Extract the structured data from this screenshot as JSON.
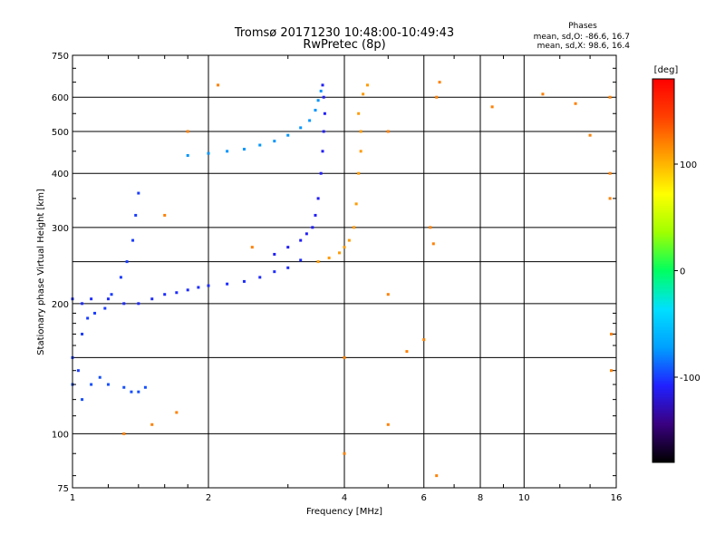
{
  "chart_data": {
    "type": "scatter",
    "title": "Tromsø 20171230 10:48:00-10:49:43",
    "subtitle": "RwPretec (8p)",
    "xlabel": "Frequency [MHz]",
    "ylabel": "Stationary phase Virtual Height [km]",
    "xscale": "log",
    "yscale": "log",
    "xlim": [
      1,
      16
    ],
    "ylim": [
      75,
      750
    ],
    "xticks": [
      "1",
      "2",
      "4",
      "6",
      "8",
      "10",
      "16"
    ],
    "xgrid_values": [
      1,
      2,
      4,
      6,
      8,
      10,
      16
    ],
    "yticks": [
      "750",
      "600",
      "500",
      "400",
      "300",
      "200",
      "100",
      "75"
    ],
    "ytick_values": [
      750,
      600,
      500,
      400,
      300,
      200,
      100,
      75
    ],
    "ygrid_extra_values": [
      250,
      150
    ],
    "grid": true,
    "stats": {
      "heading": "Phases",
      "line_o": "mean, sd,O: -86.6, 16.7",
      "line_x": "mean, sd,X:  98.6, 16.4"
    },
    "colorbar": {
      "label": "[deg]",
      "range": [
        -180,
        180
      ],
      "ticks": [
        "100",
        "0",
        "-100"
      ],
      "tick_values": [
        100,
        0,
        -100
      ],
      "colors": [
        "#000000",
        "#3a0080",
        "#2020ff",
        "#00a0ff",
        "#00e0ff",
        "#00ff60",
        "#a0ff00",
        "#ffff00",
        "#ffa000",
        "#ff4000",
        "#ff0000"
      ]
    },
    "series": [
      {
        "group": "o-low-upper",
        "phase": -105,
        "points": [
          [
            1.0,
            205
          ],
          [
            1.05,
            200
          ],
          [
            1.1,
            205
          ],
          [
            1.2,
            205
          ],
          [
            1.3,
            200
          ],
          [
            1.4,
            200
          ],
          [
            1.5,
            205
          ],
          [
            1.6,
            210
          ],
          [
            1.7,
            212
          ],
          [
            1.8,
            215
          ],
          [
            1.9,
            218
          ],
          [
            2.0,
            220
          ],
          [
            2.2,
            222
          ],
          [
            2.4,
            225
          ],
          [
            2.6,
            230
          ],
          [
            2.8,
            237
          ],
          [
            3.0,
            242
          ],
          [
            3.2,
            252
          ]
        ]
      },
      {
        "group": "o-low-lower",
        "phase": -100,
        "points": [
          [
            1.0,
            150
          ],
          [
            1.03,
            140
          ],
          [
            1.05,
            170
          ],
          [
            1.08,
            185
          ],
          [
            1.12,
            190
          ],
          [
            1.18,
            195
          ],
          [
            1.22,
            210
          ],
          [
            1.28,
            230
          ],
          [
            1.32,
            250
          ],
          [
            1.36,
            280
          ],
          [
            1.38,
            320
          ],
          [
            1.4,
            360
          ]
        ]
      },
      {
        "group": "o-low-bottom",
        "phase": -95,
        "points": [
          [
            1.0,
            130
          ],
          [
            1.05,
            120
          ],
          [
            1.1,
            130
          ],
          [
            1.15,
            135
          ],
          [
            1.2,
            130
          ],
          [
            1.3,
            128
          ],
          [
            1.35,
            125
          ],
          [
            1.4,
            125
          ],
          [
            1.45,
            128
          ]
        ]
      },
      {
        "group": "o-f2",
        "phase": -110,
        "points": [
          [
            2.8,
            260
          ],
          [
            3.0,
            270
          ],
          [
            3.2,
            280
          ],
          [
            3.3,
            290
          ],
          [
            3.4,
            300
          ],
          [
            3.45,
            320
          ],
          [
            3.5,
            350
          ],
          [
            3.55,
            400
          ],
          [
            3.58,
            450
          ],
          [
            3.6,
            500
          ],
          [
            3.62,
            550
          ],
          [
            3.6,
            600
          ],
          [
            3.58,
            640
          ]
        ]
      },
      {
        "group": "o-upper-band",
        "phase": -75,
        "points": [
          [
            1.8,
            440
          ],
          [
            2.0,
            445
          ],
          [
            2.2,
            450
          ],
          [
            2.4,
            455
          ],
          [
            2.6,
            465
          ],
          [
            2.8,
            475
          ],
          [
            3.0,
            490
          ],
          [
            3.2,
            510
          ],
          [
            3.35,
            530
          ],
          [
            3.45,
            560
          ],
          [
            3.5,
            590
          ],
          [
            3.55,
            620
          ]
        ]
      },
      {
        "group": "x-f2",
        "phase": 110,
        "points": [
          [
            3.5,
            250
          ],
          [
            3.7,
            255
          ],
          [
            3.9,
            262
          ],
          [
            4.0,
            270
          ],
          [
            4.1,
            280
          ],
          [
            4.2,
            300
          ],
          [
            4.25,
            340
          ],
          [
            4.3,
            400
          ],
          [
            4.35,
            450
          ],
          [
            4.35,
            500
          ],
          [
            4.3,
            550
          ],
          [
            4.4,
            610
          ],
          [
            4.5,
            640
          ]
        ]
      },
      {
        "group": "scatter-dots",
        "phase": 120,
        "points": [
          [
            1.6,
            320
          ],
          [
            1.8,
            500
          ],
          [
            2.1,
            640
          ],
          [
            2.5,
            270
          ],
          [
            4.0,
            90
          ],
          [
            4.0,
            150
          ],
          [
            5.0,
            500
          ],
          [
            5.0,
            210
          ],
          [
            5.5,
            155
          ],
          [
            6.0,
            165
          ],
          [
            6.2,
            300
          ],
          [
            6.3,
            275
          ],
          [
            6.4,
            600
          ],
          [
            6.4,
            80
          ],
          [
            6.5,
            650
          ],
          [
            8.5,
            570
          ],
          [
            11,
            610
          ],
          [
            13,
            580
          ],
          [
            14,
            490
          ],
          [
            15.5,
            600
          ],
          [
            15.5,
            400
          ],
          [
            15.5,
            350
          ],
          [
            15.6,
            170
          ],
          [
            15.6,
            140
          ],
          [
            5.0,
            105
          ],
          [
            1.3,
            100
          ],
          [
            1.7,
            112
          ],
          [
            1.5,
            105
          ]
        ]
      }
    ]
  }
}
